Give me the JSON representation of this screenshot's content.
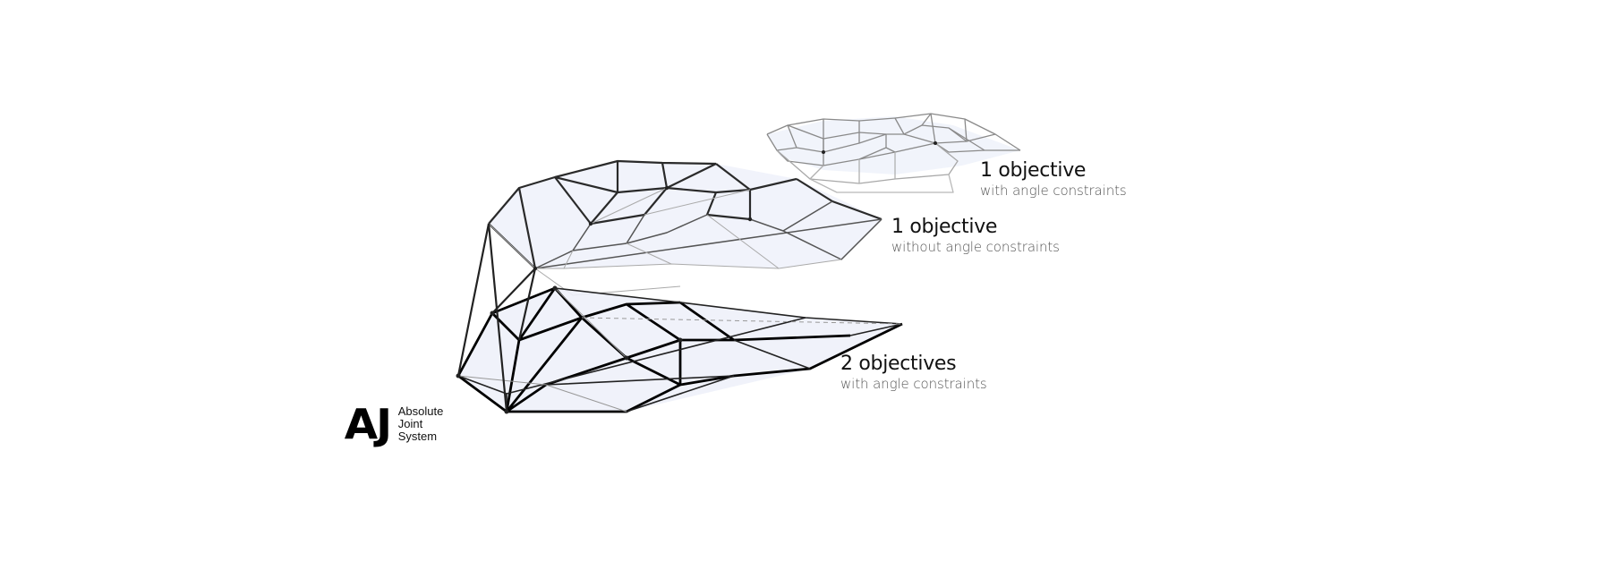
{
  "labels": [
    {
      "title": "1 objective",
      "subtitle": "with angle constraints"
    },
    {
      "title": "1 objective",
      "subtitle": "without angle constraints"
    },
    {
      "title": "2 objectives",
      "subtitle": "with angle constraints"
    }
  ],
  "logo": {
    "mark": "AJ",
    "lines": [
      "Absolute",
      "Joint",
      "System"
    ]
  },
  "colors": {
    "background": "#ffffff",
    "strut_dark": "#000000",
    "strut_mid": "#444444",
    "strut_light": "#9a9a9a",
    "membrane": "#eef1fa"
  }
}
